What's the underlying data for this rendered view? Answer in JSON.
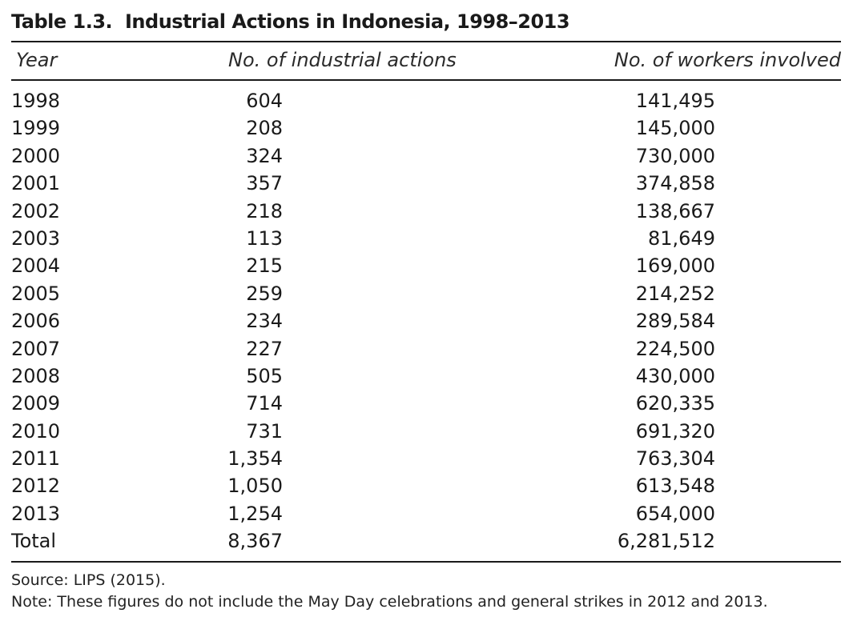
{
  "caption": {
    "number": "Table 1.3.",
    "title": "Industrial Actions in Indonesia, 1998–2013"
  },
  "headers": {
    "year": "Year",
    "actions": "No. of industrial actions",
    "workers": "No. of workers involved"
  },
  "rows": [
    {
      "year": "1998",
      "actions": "604",
      "workers": "141,495"
    },
    {
      "year": "1999",
      "actions": "208",
      "workers": "145,000"
    },
    {
      "year": "2000",
      "actions": "324",
      "workers": "730,000"
    },
    {
      "year": "2001",
      "actions": "357",
      "workers": "374,858"
    },
    {
      "year": "2002",
      "actions": "218",
      "workers": "138,667"
    },
    {
      "year": "2003",
      "actions": "113",
      "workers": "81,649"
    },
    {
      "year": "2004",
      "actions": "215",
      "workers": "169,000"
    },
    {
      "year": "2005",
      "actions": "259",
      "workers": "214,252"
    },
    {
      "year": "2006",
      "actions": "234",
      "workers": "289,584"
    },
    {
      "year": "2007",
      "actions": "227",
      "workers": "224,500"
    },
    {
      "year": "2008",
      "actions": "505",
      "workers": "430,000"
    },
    {
      "year": "2009",
      "actions": "714",
      "workers": "620,335"
    },
    {
      "year": "2010",
      "actions": "731",
      "workers": "691,320"
    },
    {
      "year": "2011",
      "actions": "1,354",
      "workers": "763,304"
    },
    {
      "year": "2012",
      "actions": "1,050",
      "workers": "613,548"
    },
    {
      "year": "2013",
      "actions": "1,254",
      "workers": "654,000"
    },
    {
      "year": "Total",
      "actions": "8,367",
      "workers": "6,281,512"
    }
  ],
  "notes": {
    "source": "Source: LIPS (2015).",
    "note": "Note: These figures do not include the May Day celebrations and general strikes in 2012 and 2013."
  }
}
